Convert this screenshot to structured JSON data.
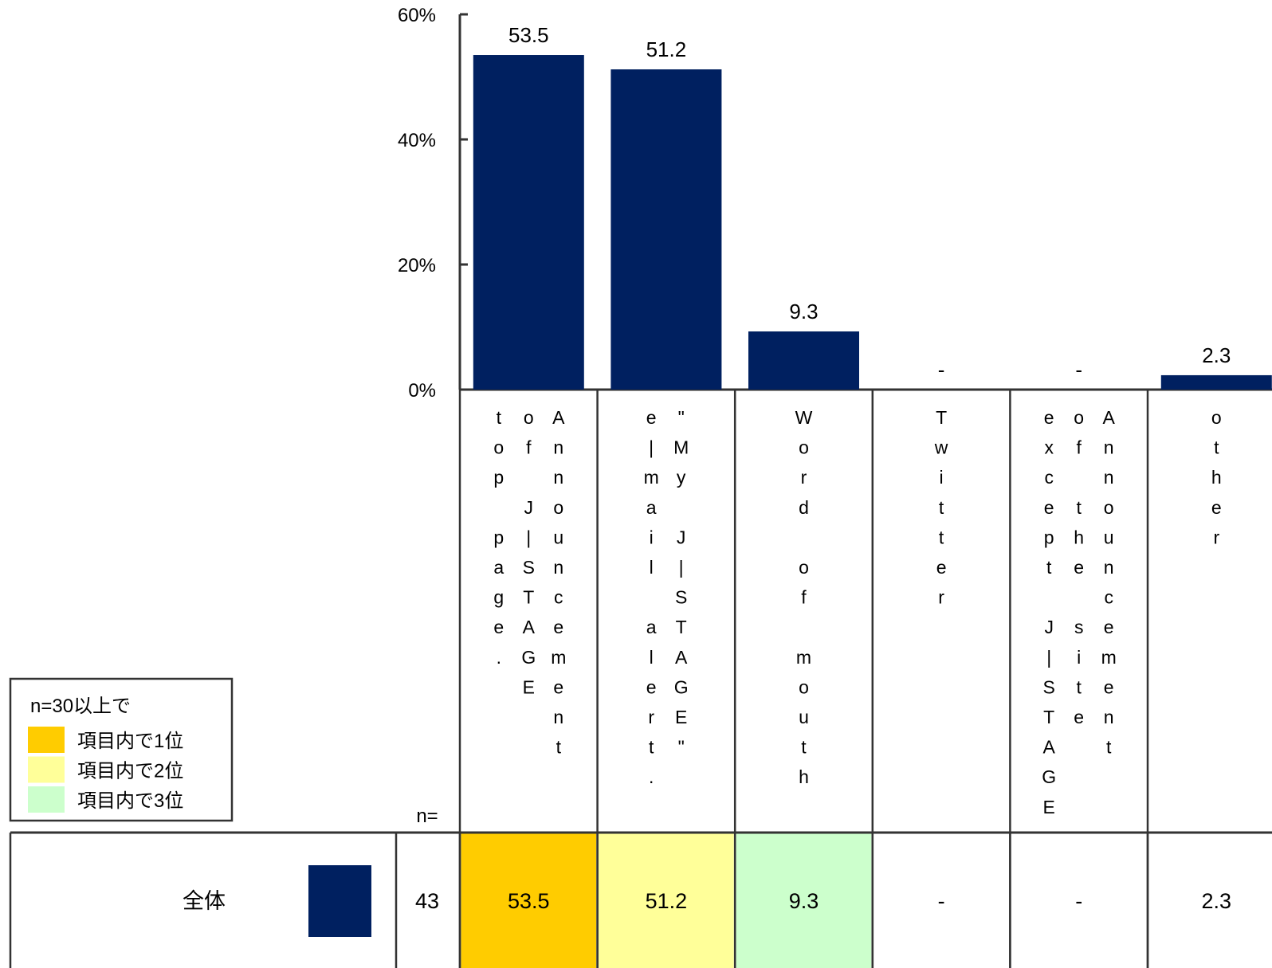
{
  "chart_data": {
    "type": "bar",
    "categories": [
      "Announcement of J｜STAGE top page.",
      "\"My J｜STAGE\" e｜mail alert.",
      "Word of mouth",
      "Twitter",
      "Announcement of the site except J｜STAGE",
      "other"
    ],
    "values": [
      53.5,
      51.2,
      9.3,
      null,
      null,
      2.3
    ],
    "value_labels": [
      "53.5",
      "51.2",
      "9.3",
      "-",
      "-",
      "2.3"
    ],
    "y_ticks": [
      "0%",
      "20%",
      "40%",
      "60%"
    ],
    "ylim": [
      0,
      60
    ],
    "title": "",
    "xlabel": "",
    "ylabel": "",
    "bar_color": "#002060"
  },
  "category_columns": [
    [
      "top page.",
      "of J｜STAGE",
      "Announcement"
    ],
    [
      "e｜mail alert.",
      "\"My J｜STAGE\""
    ],
    [
      "Word of mouth"
    ],
    [
      "Twitter"
    ],
    [
      "except J｜STAGE",
      "of the site",
      "Announcement"
    ],
    [
      "other"
    ]
  ],
  "legend": {
    "title": "n=30以上で",
    "items": [
      {
        "label": "項目内で1位",
        "color": "#ffcc00"
      },
      {
        "label": "項目内で2位",
        "color": "#ffff99"
      },
      {
        "label": "項目内で3位",
        "color": "#ccffcc"
      }
    ]
  },
  "table": {
    "n_header": "n=",
    "row_label": "全体",
    "row_n": "43",
    "cells": [
      "53.5",
      "51.2",
      "9.3",
      "-",
      "-",
      "2.3"
    ],
    "cell_colors": [
      "#ffcc00",
      "#ffff99",
      "#ccffcc",
      "#ffffff",
      "#ffffff",
      "#ffffff"
    ],
    "swatch_color": "#002060"
  }
}
